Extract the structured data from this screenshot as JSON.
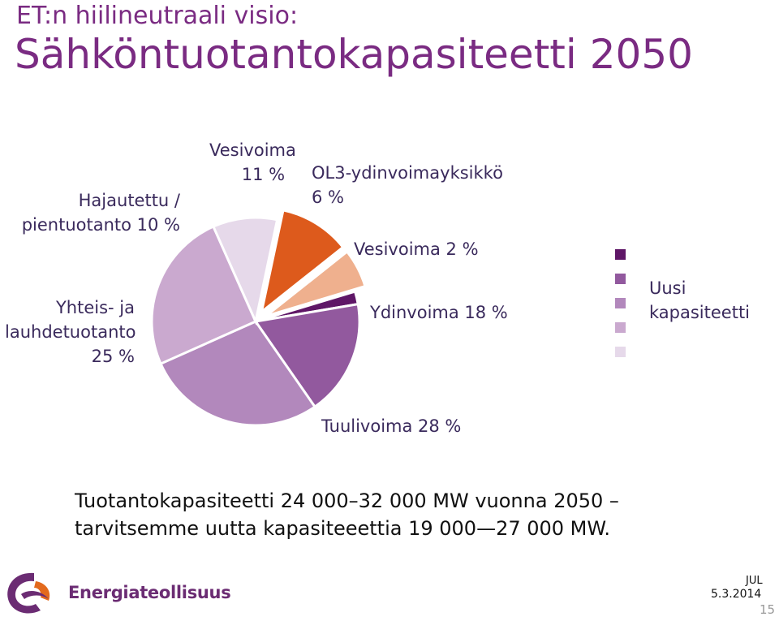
{
  "slide": {
    "title_line1": "ET:n hiilineutraali visio:",
    "title_line2": "Sähköntuotantokapasiteetti 2050"
  },
  "chart_data": {
    "type": "pie",
    "slices": [
      {
        "label_lines": [
          "Vesivoima",
          "11 %"
        ],
        "value": 11,
        "color": "#dd5a1c",
        "exploded": true
      },
      {
        "label_lines": [
          "OL3-ydinvoimayksikkö",
          "6 %"
        ],
        "value": 6,
        "color": "#efb08e",
        "exploded": true
      },
      {
        "label_lines": [
          "Vesivoima 2 %"
        ],
        "value": 2,
        "color": "#5f1767",
        "exploded": false
      },
      {
        "label_lines": [
          "Ydinvoima 18 %"
        ],
        "value": 18,
        "color": "#92599e",
        "exploded": false
      },
      {
        "label_lines": [
          "Tuulivoima 28 %"
        ],
        "value": 28,
        "color": "#b288bc",
        "exploded": false
      },
      {
        "label_lines": [
          "Yhteis- ja",
          "lauhdetuotanto",
          "25 %"
        ],
        "value": 25,
        "color": "#caa9cf",
        "exploded": false
      },
      {
        "label_lines": [
          "Hajautettu /",
          "pientuotanto 10 %"
        ],
        "value": 10,
        "color": "#e6d9ea",
        "exploded": false
      }
    ],
    "legend": {
      "colors": [
        "#5f1767",
        "#92599e",
        "#b288bc",
        "#caa9cf",
        "#e6d9ea"
      ],
      "label_lines": [
        "Uusi",
        "kapasiteetti"
      ]
    }
  },
  "summary": {
    "line1": "Tuotantokapasiteetti 24 000–32 000 MW vuonna 2050 –",
    "line2": "tarvitsemme uutta kapasiteeettia 19 000—27 000 MW."
  },
  "footer": {
    "logo_text": "Energiateollisuus",
    "date_top": "JUL",
    "date": "5.3.2014",
    "page_number": "15"
  }
}
